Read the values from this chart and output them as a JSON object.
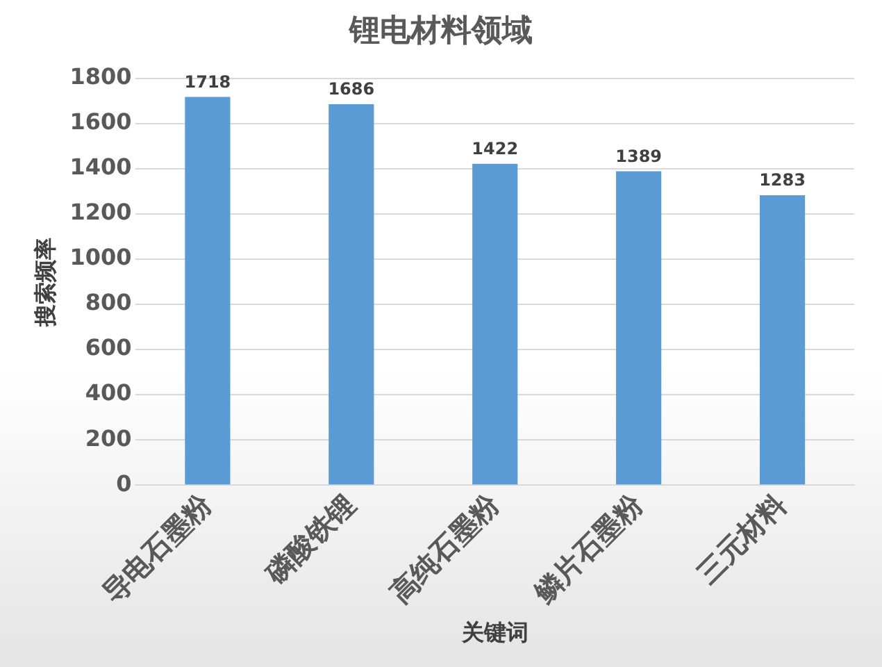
{
  "chart_data": {
    "type": "bar",
    "title": "锂电材料领域",
    "xlabel": "关键词",
    "ylabel": "搜索频率",
    "categories": [
      "导电石墨粉",
      "磷酸铁锂",
      "高纯石墨粉",
      "鳞片石墨粉",
      "三元材料"
    ],
    "values": [
      1718,
      1686,
      1422,
      1389,
      1283
    ],
    "color": "#5b9bd5",
    "ylim": [
      0,
      1800
    ],
    "yticks": [
      0,
      200,
      400,
      600,
      800,
      1000,
      1200,
      1400,
      1600,
      1800
    ],
    "grid": "y",
    "data_labels": true,
    "legend": false
  }
}
